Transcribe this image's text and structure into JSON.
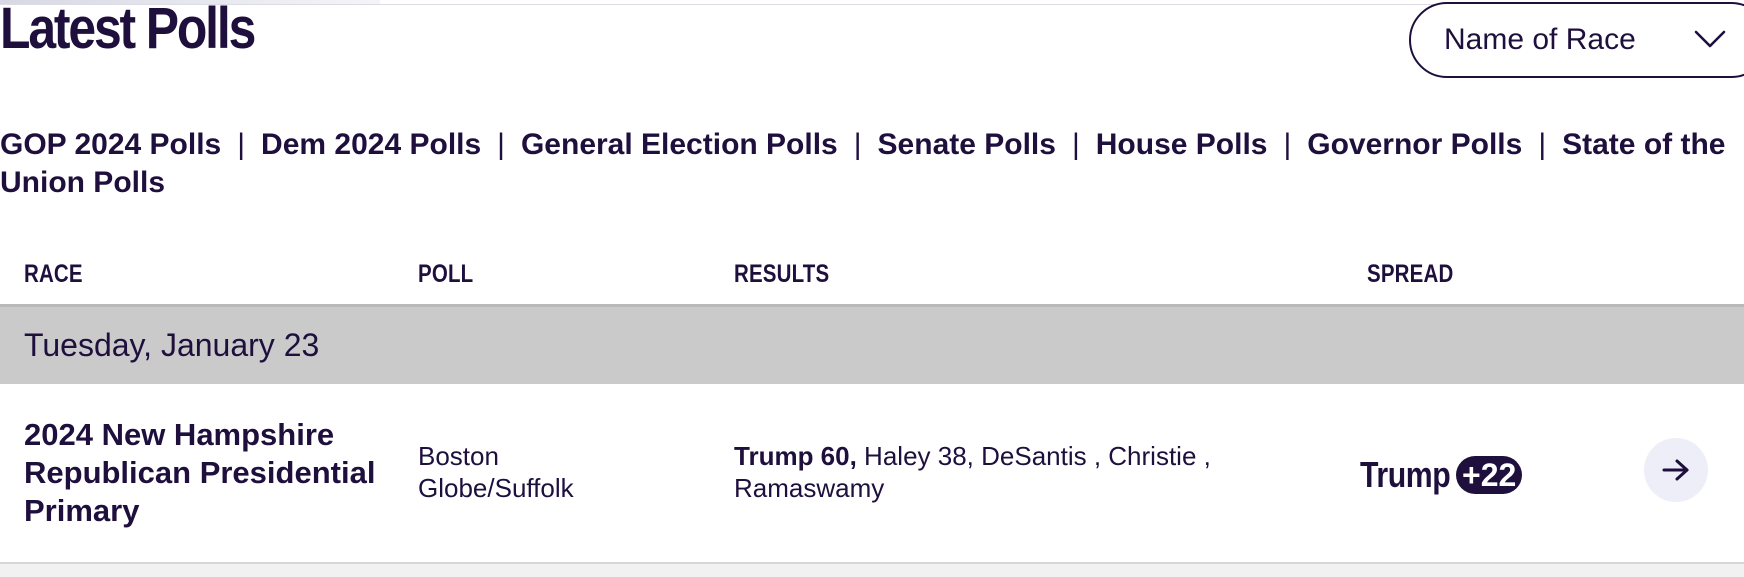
{
  "page": {
    "title": "Latest Polls"
  },
  "race_select": {
    "selected": "Name of Race"
  },
  "poll_links": [
    "GOP 2024 Polls",
    "Dem 2024 Polls",
    "General Election Polls",
    "Senate Polls",
    "House Polls",
    "Governor Polls",
    "State of the Union Polls"
  ],
  "table": {
    "columns": {
      "race": "RACE",
      "poll": "POLL",
      "results": "RESULTS",
      "spread": "SPREAD"
    },
    "date_group": "Tuesday, January 23",
    "rows": [
      {
        "race": "2024 New Hampshire Republican Presidential Primary",
        "poll": "Boston Globe/Suffolk",
        "results_leader": "Trump 60,",
        "results_rest": " Haley 38, DeSantis , Christie , Ramaswamy",
        "spread_name": "Trump",
        "spread_value": "+22"
      }
    ]
  },
  "icons": {
    "dropdown": "chevron-down-icon",
    "row_link": "arrow-right-icon"
  },
  "colors": {
    "brand_text": "#1e0f3d",
    "date_band": "#cacaca",
    "arrow_button_bg": "#eeeef8"
  }
}
